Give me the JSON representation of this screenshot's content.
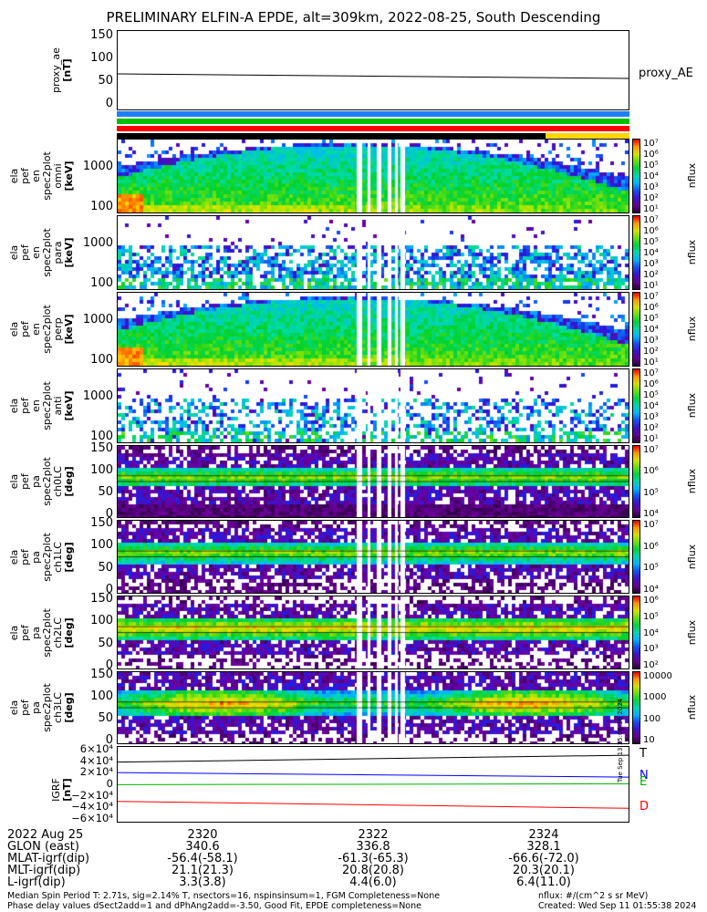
{
  "title": "PRELIMINARY ELFIN-A EPDE, alt=309km, 2022-08-25, South Descending",
  "proxy_ae": {
    "ylabel": "proxy_ae\n[nT]",
    "ticks": [
      "150",
      "100",
      "50",
      "0"
    ],
    "legend": "proxy_AE",
    "color": "#000000"
  },
  "status_bars": [
    {
      "name": "blue",
      "color": "#1e7fff"
    },
    {
      "name": "green",
      "color": "#00c000"
    },
    {
      "name": "red",
      "color": "#ff0000"
    },
    {
      "name": "black-yellow",
      "color": "#000000",
      "accent": "#ffd700"
    }
  ],
  "spec_panels": [
    {
      "id": "p1",
      "ylabel": "ela\npef\nen\nspec2plot\nomni\n[keV]",
      "ticks": [
        "1000",
        "100"
      ],
      "cb_ticks": [
        "10⁷",
        "10⁶",
        "10⁵",
        "10⁴",
        "10³",
        "10²",
        "10¹"
      ],
      "cb_unit": "nflux",
      "kind": "en_full"
    },
    {
      "id": "p2",
      "ylabel": "ela\npef\nen\nspec2plot\npara\n[keV]",
      "ticks": [
        "1000",
        "100"
      ],
      "cb_ticks": [
        "10⁷",
        "10⁶",
        "10⁵",
        "10⁴",
        "10³",
        "10²",
        "10¹"
      ],
      "cb_unit": "nflux",
      "kind": "en_sparse"
    },
    {
      "id": "p3",
      "ylabel": "ela\npef\nen\nspec2plot\nperp\n[keV]",
      "ticks": [
        "1000",
        "100"
      ],
      "cb_ticks": [
        "10⁷",
        "10⁶",
        "10⁵",
        "10⁴",
        "10³",
        "10²",
        "10¹"
      ],
      "cb_unit": "nflux",
      "kind": "en_full"
    },
    {
      "id": "p4",
      "ylabel": "ela\npef\nen\nspec2plot\nanti\n[keV]",
      "ticks": [
        "1000",
        "100"
      ],
      "cb_ticks": [
        "10⁷",
        "10⁶",
        "10⁵",
        "10⁴",
        "10³",
        "10²",
        "10¹"
      ],
      "cb_unit": "nflux",
      "kind": "en_sparse2"
    },
    {
      "id": "p5",
      "ylabel": "ela\npef\npa\nspec2plot\nch0LC\n[deg]",
      "ticks": [
        "150",
        "100",
        "50",
        "0"
      ],
      "cb_ticks": [
        "10⁷",
        "10⁶",
        "10⁵",
        "10⁴"
      ],
      "cb_unit": "nflux",
      "kind": "pa0"
    },
    {
      "id": "p6",
      "ylabel": "ela\npef\npa\nspec2plot\nch1LC\n[deg]",
      "ticks": [
        "150",
        "100",
        "50",
        "0"
      ],
      "cb_ticks": [
        "10⁷",
        "10⁶",
        "10⁵",
        "10⁴"
      ],
      "cb_unit": "nflux",
      "kind": "pa1"
    },
    {
      "id": "p7",
      "ylabel": "ela\npef\npa\nspec2plot\nch2LC\n[deg]",
      "ticks": [
        "150",
        "100",
        "50",
        "0"
      ],
      "cb_ticks": [
        "10⁶",
        "10⁵",
        "10⁴",
        "10³",
        "10²"
      ],
      "cb_unit": "nflux",
      "kind": "pa2"
    },
    {
      "id": "p8",
      "ylabel": "ela\npef\npa\nspec2plot\nch3LC\n[deg]",
      "ticks": [
        "150",
        "100",
        "50",
        "0"
      ],
      "cb_ticks": [
        "10000",
        "1000",
        "100",
        "10"
      ],
      "cb_unit": "nflux",
      "kind": "pa3"
    }
  ],
  "igrf": {
    "ylabel": "IGRF\n[nT]",
    "ticks": [
      "6×10⁴",
      "4×10⁴",
      "2×10⁴",
      "0",
      "−2×10⁴",
      "−4×10⁴",
      "−6×10⁴"
    ],
    "series": [
      {
        "name": "T",
        "color": "#000000",
        "y_start": 40000,
        "y_end": 52000
      },
      {
        "name": "N",
        "color": "#0000ff",
        "y_start": 22000,
        "y_end": 14000
      },
      {
        "name": "E",
        "color": "#00b000",
        "y_start": 1000,
        "y_end": 2500
      },
      {
        "name": "D",
        "color": "#ff0000",
        "y_start": -28000,
        "y_end": -40000
      }
    ],
    "side_text": "Tue Sep 13 15:06:38 2024"
  },
  "footer": {
    "date": "2022 Aug 25",
    "labels": [
      "GLON (east)",
      "MLAT-igrf(dip)",
      "MLT-igrf(dip)",
      "L-igrf(dip)"
    ],
    "times": [
      "2320",
      "2322",
      "2324"
    ],
    "columns": [
      [
        "340.6",
        "-56.4(-58.1)",
        "21.1(21.3)",
        "3.3(3.8)"
      ],
      [
        "336.8",
        "-61.3(-65.3)",
        "20.8(20.8)",
        "4.4(6.0)"
      ],
      [
        "328.1",
        "-66.6(-72.0)",
        "20.3(20.1)",
        "6.4(11.0)"
      ]
    ],
    "note1": "Median Spin Period T: 2.71s, sig=2.14% T, nsectors=16, nspinsinsum=1, FGM Completeness=None",
    "note2": "Phase delay values dSect2add=1 and dPhAng2add=-3.50, Good Fit, EPDE completeness=None",
    "units": "nflux: #/(cm^2 s sr MeV)",
    "created": "Created: Wed Sep 11 01:55:38 2024"
  },
  "chart_data": {
    "type": "heatmap",
    "title": "PRELIMINARY ELFIN-A EPDE, alt=309km, 2022-08-25, South Descending",
    "x_ticks": [
      "2320",
      "2322",
      "2324"
    ],
    "proxy_ae": {
      "ylim": [
        0,
        150
      ],
      "values": [
        68,
        58
      ]
    },
    "energy_ylim_keV": [
      63,
      6500
    ],
    "pa_ylim_deg": [
      0,
      180
    ],
    "igrf_ylim_nT": [
      -60000,
      60000
    ]
  }
}
